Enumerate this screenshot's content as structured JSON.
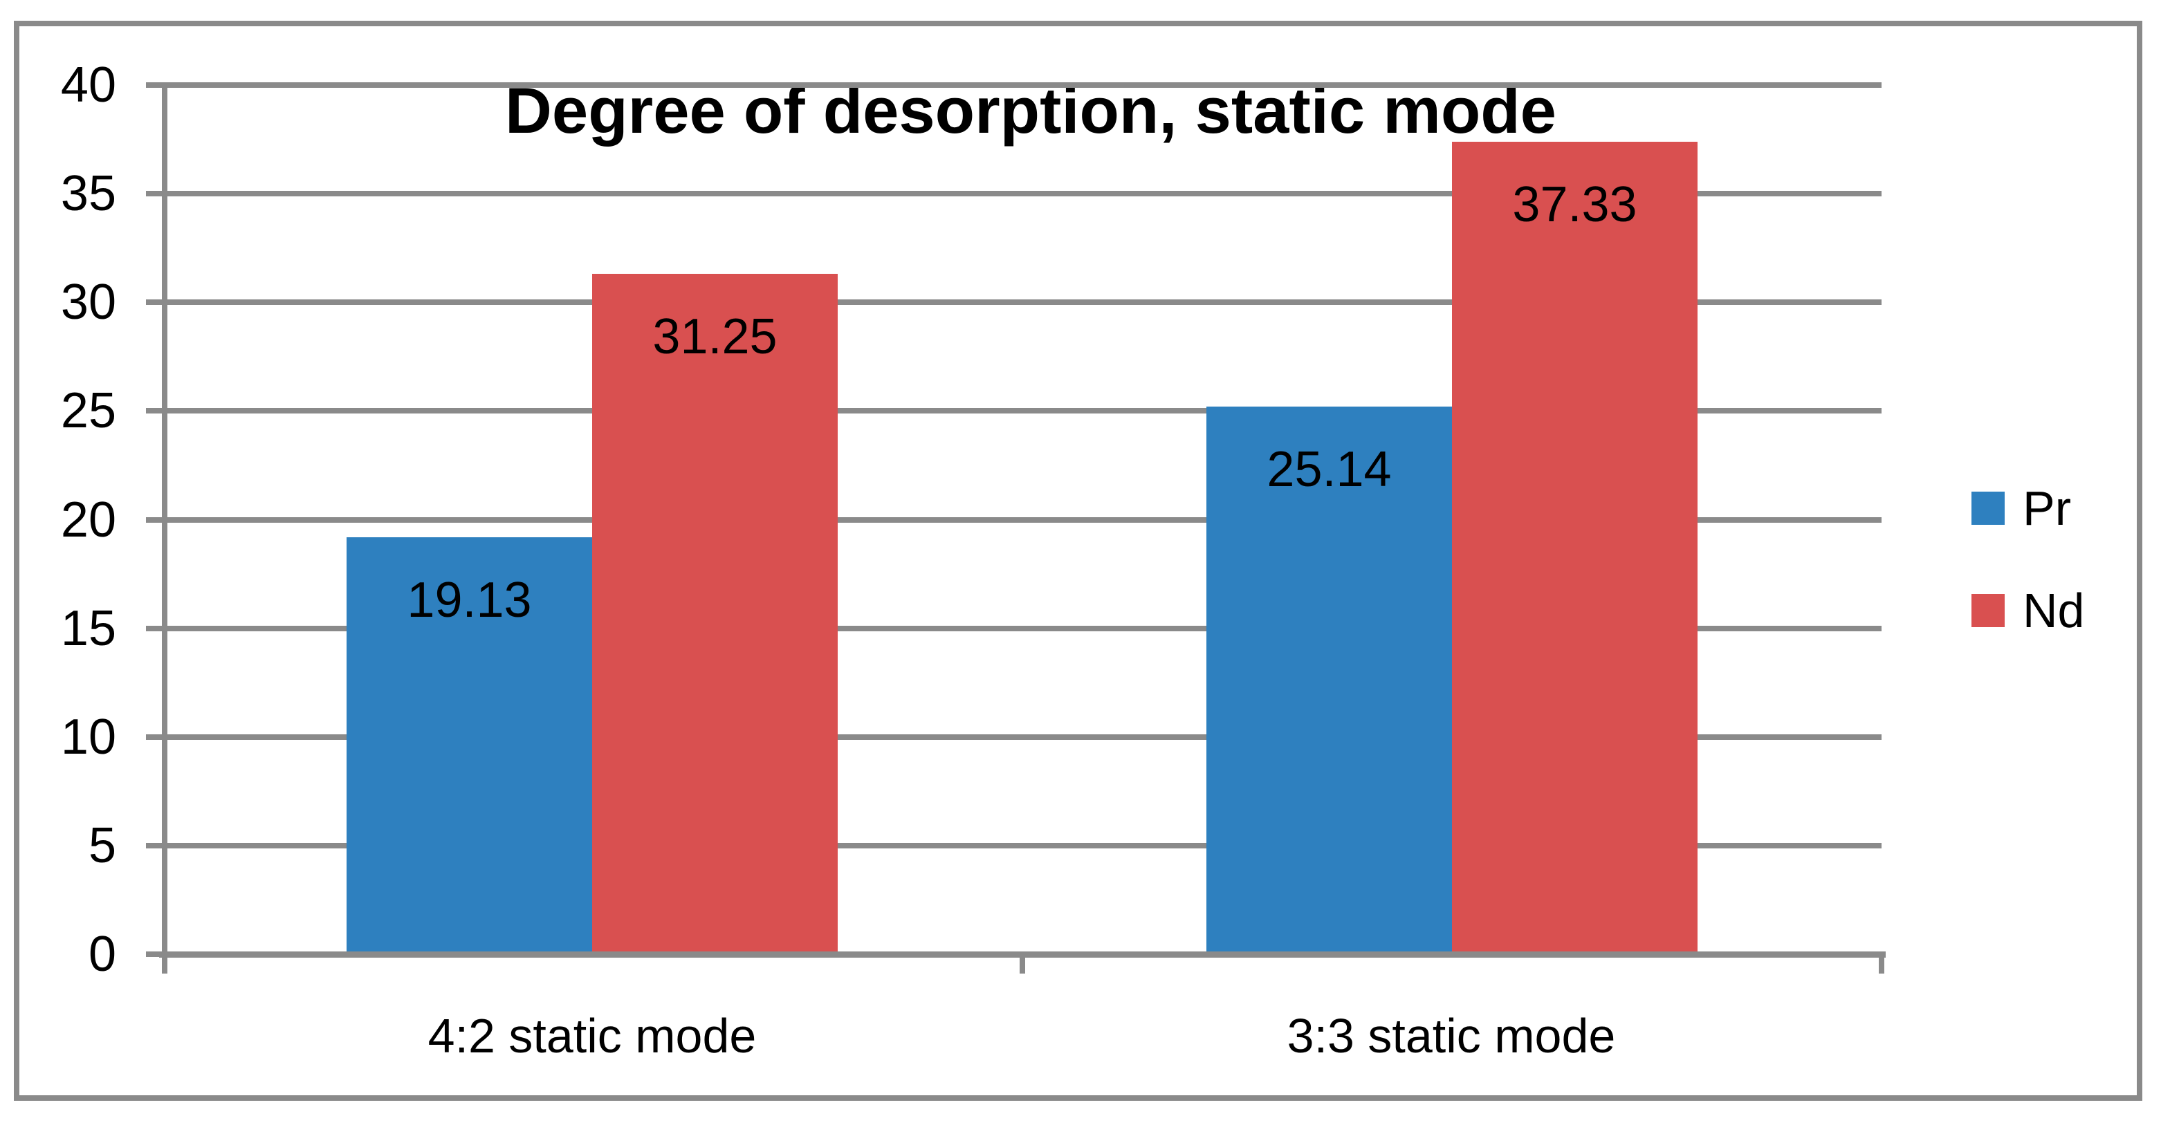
{
  "chart_data": {
    "type": "bar",
    "title": "Degree of desorption, static mode",
    "categories": [
      "4:2 static mode",
      "3:3 static mode"
    ],
    "series": [
      {
        "name": "Pr",
        "color": "#2E80BF",
        "values": [
          19.13,
          25.14
        ]
      },
      {
        "name": "Nd",
        "color": "#D95050",
        "values": [
          31.25,
          37.33
        ]
      }
    ],
    "ylim": [
      0,
      40
    ],
    "yticks": [
      0,
      5,
      10,
      15,
      20,
      25,
      30,
      35,
      40
    ],
    "xlabel": "",
    "ylabel": "",
    "grid": true,
    "data_labels": true,
    "data_label_format": "2-decimals",
    "legend_position": "right"
  },
  "colors": {
    "bar_pr": "#2E80BF",
    "bar_nd": "#D95050",
    "gridline": "#8A8A8A",
    "axis": "#8A8A8A",
    "frame_border": "#8A8A8A",
    "background": "#FFFFFF",
    "text": "#000000"
  }
}
